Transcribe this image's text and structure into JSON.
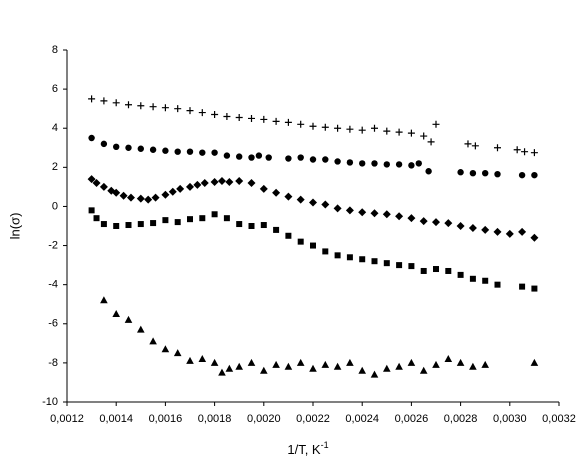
{
  "chart_data": {
    "type": "scatter",
    "xlabel": {
      "text": "1/T, K",
      "superscript": "-1"
    },
    "ylabel": "ln(σ)",
    "xlim": [
      0.0012,
      0.0032
    ],
    "ylim": [
      -10,
      8
    ],
    "xticks": [
      {
        "value": 0.0012,
        "label": "0,0012"
      },
      {
        "value": 0.0014,
        "label": "0,0014"
      },
      {
        "value": 0.0016,
        "label": "0,0016"
      },
      {
        "value": 0.0018,
        "label": "0,0018"
      },
      {
        "value": 0.002,
        "label": "0,0020"
      },
      {
        "value": 0.0022,
        "label": "0,0022"
      },
      {
        "value": 0.0024,
        "label": "0,0024"
      },
      {
        "value": 0.0026,
        "label": "0,0026"
      },
      {
        "value": 0.0028,
        "label": "0,0028"
      },
      {
        "value": 0.003,
        "label": "0,0030"
      },
      {
        "value": 0.0032,
        "label": "0,0032"
      }
    ],
    "yticks": [
      -10,
      -8,
      -6,
      -4,
      -2,
      0,
      2,
      4,
      6,
      8
    ],
    "grid": false,
    "series": [
      {
        "marker": "plus",
        "color": "#000000",
        "x": [
          0.0013,
          0.00135,
          0.0014,
          0.00145,
          0.0015,
          0.00155,
          0.0016,
          0.00165,
          0.0017,
          0.00175,
          0.0018,
          0.00185,
          0.0019,
          0.00195,
          0.002,
          0.00205,
          0.0021,
          0.00215,
          0.0022,
          0.00225,
          0.0023,
          0.00235,
          0.0024,
          0.00245,
          0.0025,
          0.00255,
          0.0026,
          0.00265,
          0.00268,
          0.0027,
          0.00283,
          0.00286,
          0.00295,
          0.00303,
          0.00306,
          0.0031
        ],
        "values": [
          5.5,
          5.4,
          5.3,
          5.2,
          5.15,
          5.1,
          5.05,
          5.0,
          4.9,
          4.8,
          4.7,
          4.6,
          4.55,
          4.5,
          4.45,
          4.35,
          4.3,
          4.2,
          4.1,
          4.05,
          4.0,
          3.95,
          3.9,
          4.0,
          3.85,
          3.8,
          3.75,
          3.6,
          3.3,
          4.2,
          3.2,
          3.1,
          3.0,
          2.9,
          2.8,
          2.75
        ]
      },
      {
        "marker": "circle",
        "color": "#000000",
        "x": [
          0.0013,
          0.00135,
          0.0014,
          0.00145,
          0.0015,
          0.00155,
          0.0016,
          0.00165,
          0.0017,
          0.00175,
          0.0018,
          0.00185,
          0.0019,
          0.00195,
          0.00198,
          0.00202,
          0.0021,
          0.00215,
          0.0022,
          0.00225,
          0.0023,
          0.00235,
          0.0024,
          0.00245,
          0.0025,
          0.00255,
          0.0026,
          0.00263,
          0.00267,
          0.0028,
          0.00285,
          0.0029,
          0.00295,
          0.00305,
          0.0031
        ],
        "values": [
          3.5,
          3.2,
          3.05,
          3.0,
          2.95,
          2.9,
          2.85,
          2.8,
          2.8,
          2.75,
          2.75,
          2.6,
          2.55,
          2.5,
          2.6,
          2.5,
          2.45,
          2.5,
          2.4,
          2.4,
          2.3,
          2.25,
          2.2,
          2.2,
          2.15,
          2.15,
          2.1,
          2.2,
          1.8,
          1.75,
          1.7,
          1.7,
          1.65,
          1.6,
          1.6
        ]
      },
      {
        "marker": "diamond",
        "color": "#000000",
        "x": [
          0.0013,
          0.00132,
          0.00135,
          0.00138,
          0.0014,
          0.00143,
          0.00146,
          0.0015,
          0.00153,
          0.00156,
          0.0016,
          0.00163,
          0.00166,
          0.0017,
          0.00173,
          0.00176,
          0.0018,
          0.00183,
          0.00186,
          0.0019,
          0.00195,
          0.002,
          0.00205,
          0.0021,
          0.00215,
          0.0022,
          0.00225,
          0.0023,
          0.00235,
          0.0024,
          0.00245,
          0.0025,
          0.00255,
          0.0026,
          0.00265,
          0.0027,
          0.00275,
          0.0028,
          0.00285,
          0.0029,
          0.00295,
          0.003,
          0.00305,
          0.0031
        ],
        "values": [
          1.4,
          1.2,
          1.0,
          0.8,
          0.7,
          0.55,
          0.45,
          0.4,
          0.35,
          0.45,
          0.6,
          0.75,
          0.9,
          1.0,
          1.1,
          1.2,
          1.25,
          1.3,
          1.25,
          1.3,
          1.2,
          0.9,
          0.7,
          0.5,
          0.35,
          0.2,
          0.1,
          -0.1,
          -0.2,
          -0.3,
          -0.35,
          -0.4,
          -0.5,
          -0.6,
          -0.75,
          -0.8,
          -0.85,
          -1.0,
          -1.1,
          -1.2,
          -1.3,
          -1.4,
          -1.3,
          -1.6
        ]
      },
      {
        "marker": "square",
        "color": "#000000",
        "x": [
          0.0013,
          0.00132,
          0.00135,
          0.0014,
          0.00145,
          0.0015,
          0.00155,
          0.0016,
          0.00165,
          0.0017,
          0.00175,
          0.0018,
          0.00185,
          0.0019,
          0.00195,
          0.002,
          0.00205,
          0.0021,
          0.00215,
          0.0022,
          0.00225,
          0.0023,
          0.00235,
          0.0024,
          0.00245,
          0.0025,
          0.00255,
          0.0026,
          0.00265,
          0.0027,
          0.00275,
          0.0028,
          0.00285,
          0.0029,
          0.00295,
          0.00305,
          0.0031
        ],
        "values": [
          -0.2,
          -0.6,
          -0.9,
          -1.0,
          -0.95,
          -0.9,
          -0.85,
          -0.7,
          -0.8,
          -0.65,
          -0.6,
          -0.4,
          -0.6,
          -0.9,
          -1.0,
          -0.95,
          -1.2,
          -1.5,
          -1.8,
          -2.0,
          -2.3,
          -2.5,
          -2.6,
          -2.7,
          -2.8,
          -2.9,
          -3.0,
          -3.05,
          -3.3,
          -3.2,
          -3.3,
          -3.5,
          -3.7,
          -3.8,
          -4.0,
          -4.1,
          -4.2
        ]
      },
      {
        "marker": "triangle",
        "color": "#000000",
        "x": [
          0.00135,
          0.0014,
          0.00145,
          0.0015,
          0.00155,
          0.0016,
          0.00165,
          0.0017,
          0.00175,
          0.0018,
          0.00183,
          0.00186,
          0.0019,
          0.00195,
          0.002,
          0.00205,
          0.0021,
          0.00215,
          0.0022,
          0.00225,
          0.0023,
          0.00235,
          0.0024,
          0.00245,
          0.0025,
          0.00255,
          0.0026,
          0.00265,
          0.0027,
          0.00275,
          0.0028,
          0.00285,
          0.0029,
          0.0031
        ],
        "values": [
          -4.8,
          -5.5,
          -5.8,
          -6.3,
          -6.9,
          -7.3,
          -7.5,
          -7.9,
          -7.8,
          -8.0,
          -8.5,
          -8.3,
          -8.2,
          -8.0,
          -8.4,
          -8.1,
          -8.2,
          -8.0,
          -8.3,
          -8.1,
          -8.2,
          -8.0,
          -8.4,
          -8.6,
          -8.3,
          -8.2,
          -8.0,
          -8.4,
          -8.1,
          -7.8,
          -8.0,
          -8.2,
          -8.1,
          -8.0
        ]
      }
    ]
  }
}
